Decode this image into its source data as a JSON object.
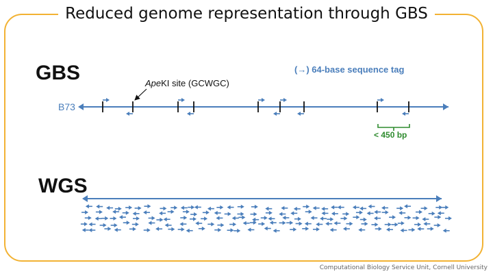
{
  "title": "Reduced genome representation through GBS",
  "gbs": {
    "heading": "GBS",
    "legend": "(→) 64-base sequence tag",
    "site_label_italic": "Ape",
    "site_label_rest": "KI site (GCWGC)",
    "chromosome_label": "B73",
    "fragment_label": "< 450 bp"
  },
  "wgs": {
    "heading": "WGS"
  },
  "footer": "Computational Biology Service Unit, Cornell University",
  "colors": {
    "frame": "#f2b233",
    "line_blue": "#4a7ebb",
    "fragment_green": "#2e8b2e",
    "text_dark": "#111111"
  }
}
